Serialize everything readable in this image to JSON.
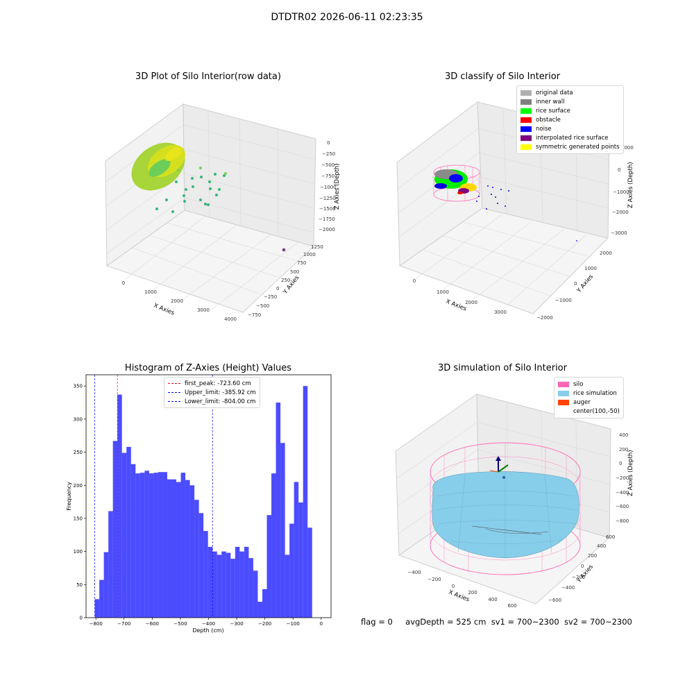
{
  "figure": {
    "suptitle": "DTDTR02 2026-06-11 02:23:35",
    "footer": {
      "flag": "flag = 0",
      "avg_depth": "avgDepth = 525 cm",
      "sv1": "sv1 = 700~2300",
      "sv2": "sv2 = 700~2300"
    }
  },
  "chart_data": [
    {
      "type": "scatter",
      "subtype": "3d",
      "title": "3D Plot of Silo Interior(row data)",
      "xlabel": "X Axies",
      "ylabel": "Y Axies",
      "zlabel": "Z Axies (Depth)",
      "x_ticks": [
        "0",
        "1000",
        "2000",
        "3000",
        "4000"
      ],
      "y_ticks": [
        "−750",
        "−500",
        "−250",
        "0",
        "250",
        "500",
        "750",
        "1000",
        "1250"
      ],
      "z_ticks": [
        "0",
        "−250",
        "−500",
        "−750",
        "−1000",
        "−1250",
        "−1500",
        "−1750",
        "−2000"
      ],
      "colormap": [
        "#440154",
        "#31688e",
        "#35b779",
        "#fde725"
      ]
    },
    {
      "type": "scatter",
      "subtype": "3d",
      "title": "3D classify of Silo Interior",
      "xlabel": "X Axies",
      "ylabel": "Y Axies",
      "zlabel": "Z Axies (Depth)",
      "x_ticks": [
        "0",
        "1000",
        "2000",
        "3000"
      ],
      "y_ticks": [
        "−2000",
        "−1000",
        "0",
        "1000",
        "2000"
      ],
      "z_ticks": [
        "1000",
        "0",
        "−1000",
        "−2000",
        "−3000"
      ],
      "legend": [
        {
          "label": "original data",
          "color": "#b0b0b0"
        },
        {
          "label": "inner wall",
          "color": "#808080"
        },
        {
          "label": "rice surface",
          "color": "#00ff00"
        },
        {
          "label": "obstacle",
          "color": "#ff0000"
        },
        {
          "label": "noise",
          "color": "#0000ff"
        },
        {
          "label": "interpolated rice surface",
          "color": "#800080"
        },
        {
          "label": "symmetric generated points",
          "color": "#ffff00"
        }
      ]
    },
    {
      "type": "bar",
      "subtype": "histogram",
      "title": "Histogram of Z-Axies (Height) Values",
      "xlabel": "Depth (cm)",
      "ylabel": "Frequency",
      "xlim": [
        -835,
        35
      ],
      "ylim": [
        0,
        367
      ],
      "x_ticks": [
        -800,
        -700,
        -600,
        -500,
        -400,
        -300,
        -200,
        -100,
        0
      ],
      "y_ticks": [
        0,
        50,
        100,
        150,
        200,
        250,
        300,
        350
      ],
      "bin_start": -804,
      "bin_width": 16.08,
      "color": "#0000ff",
      "values": [
        28,
        57,
        99,
        161,
        267,
        337,
        249,
        258,
        232,
        218,
        219,
        222,
        218,
        219,
        220,
        220,
        209,
        209,
        205,
        219,
        208,
        200,
        178,
        158,
        131,
        107,
        100,
        95,
        100,
        98,
        89,
        107,
        100,
        107,
        90,
        71,
        24,
        43,
        155,
        218,
        325,
        264,
        95,
        142,
        205,
        174,
        350,
        136
      ],
      "lines": [
        {
          "label": "first_peak: -723.60 cm",
          "x": -723.6,
          "color": "#ff0000"
        },
        {
          "label": "Upper_limit: -385.92 cm",
          "x": -385.92,
          "color": "#0000ff"
        },
        {
          "label": "Lower_limit: -804.00 cm",
          "x": -804.0,
          "color": "#0000ff"
        }
      ]
    },
    {
      "type": "area",
      "subtype": "3d-surface",
      "title": "3D simulation of Silo Interior",
      "xlabel": "X Axies",
      "ylabel": "Y Axies",
      "zlabel": "Z Axies (Depth)",
      "x_ticks": [
        "−400",
        "−200",
        "0",
        "200",
        "400",
        "600"
      ],
      "y_ticks": [
        "−600",
        "−400",
        "−200",
        "0",
        "200",
        "400",
        "600"
      ],
      "z_ticks": [
        "400",
        "200",
        "0",
        "−200",
        "−400",
        "−600",
        "−800"
      ],
      "legend": [
        {
          "label": "silo",
          "color": "#ff69b4"
        },
        {
          "label": "rice simulation",
          "color": "#87ceeb"
        },
        {
          "label": "auger",
          "color": "#ff4500"
        },
        {
          "label": "center(100,-50)",
          "color": ""
        }
      ]
    }
  ]
}
